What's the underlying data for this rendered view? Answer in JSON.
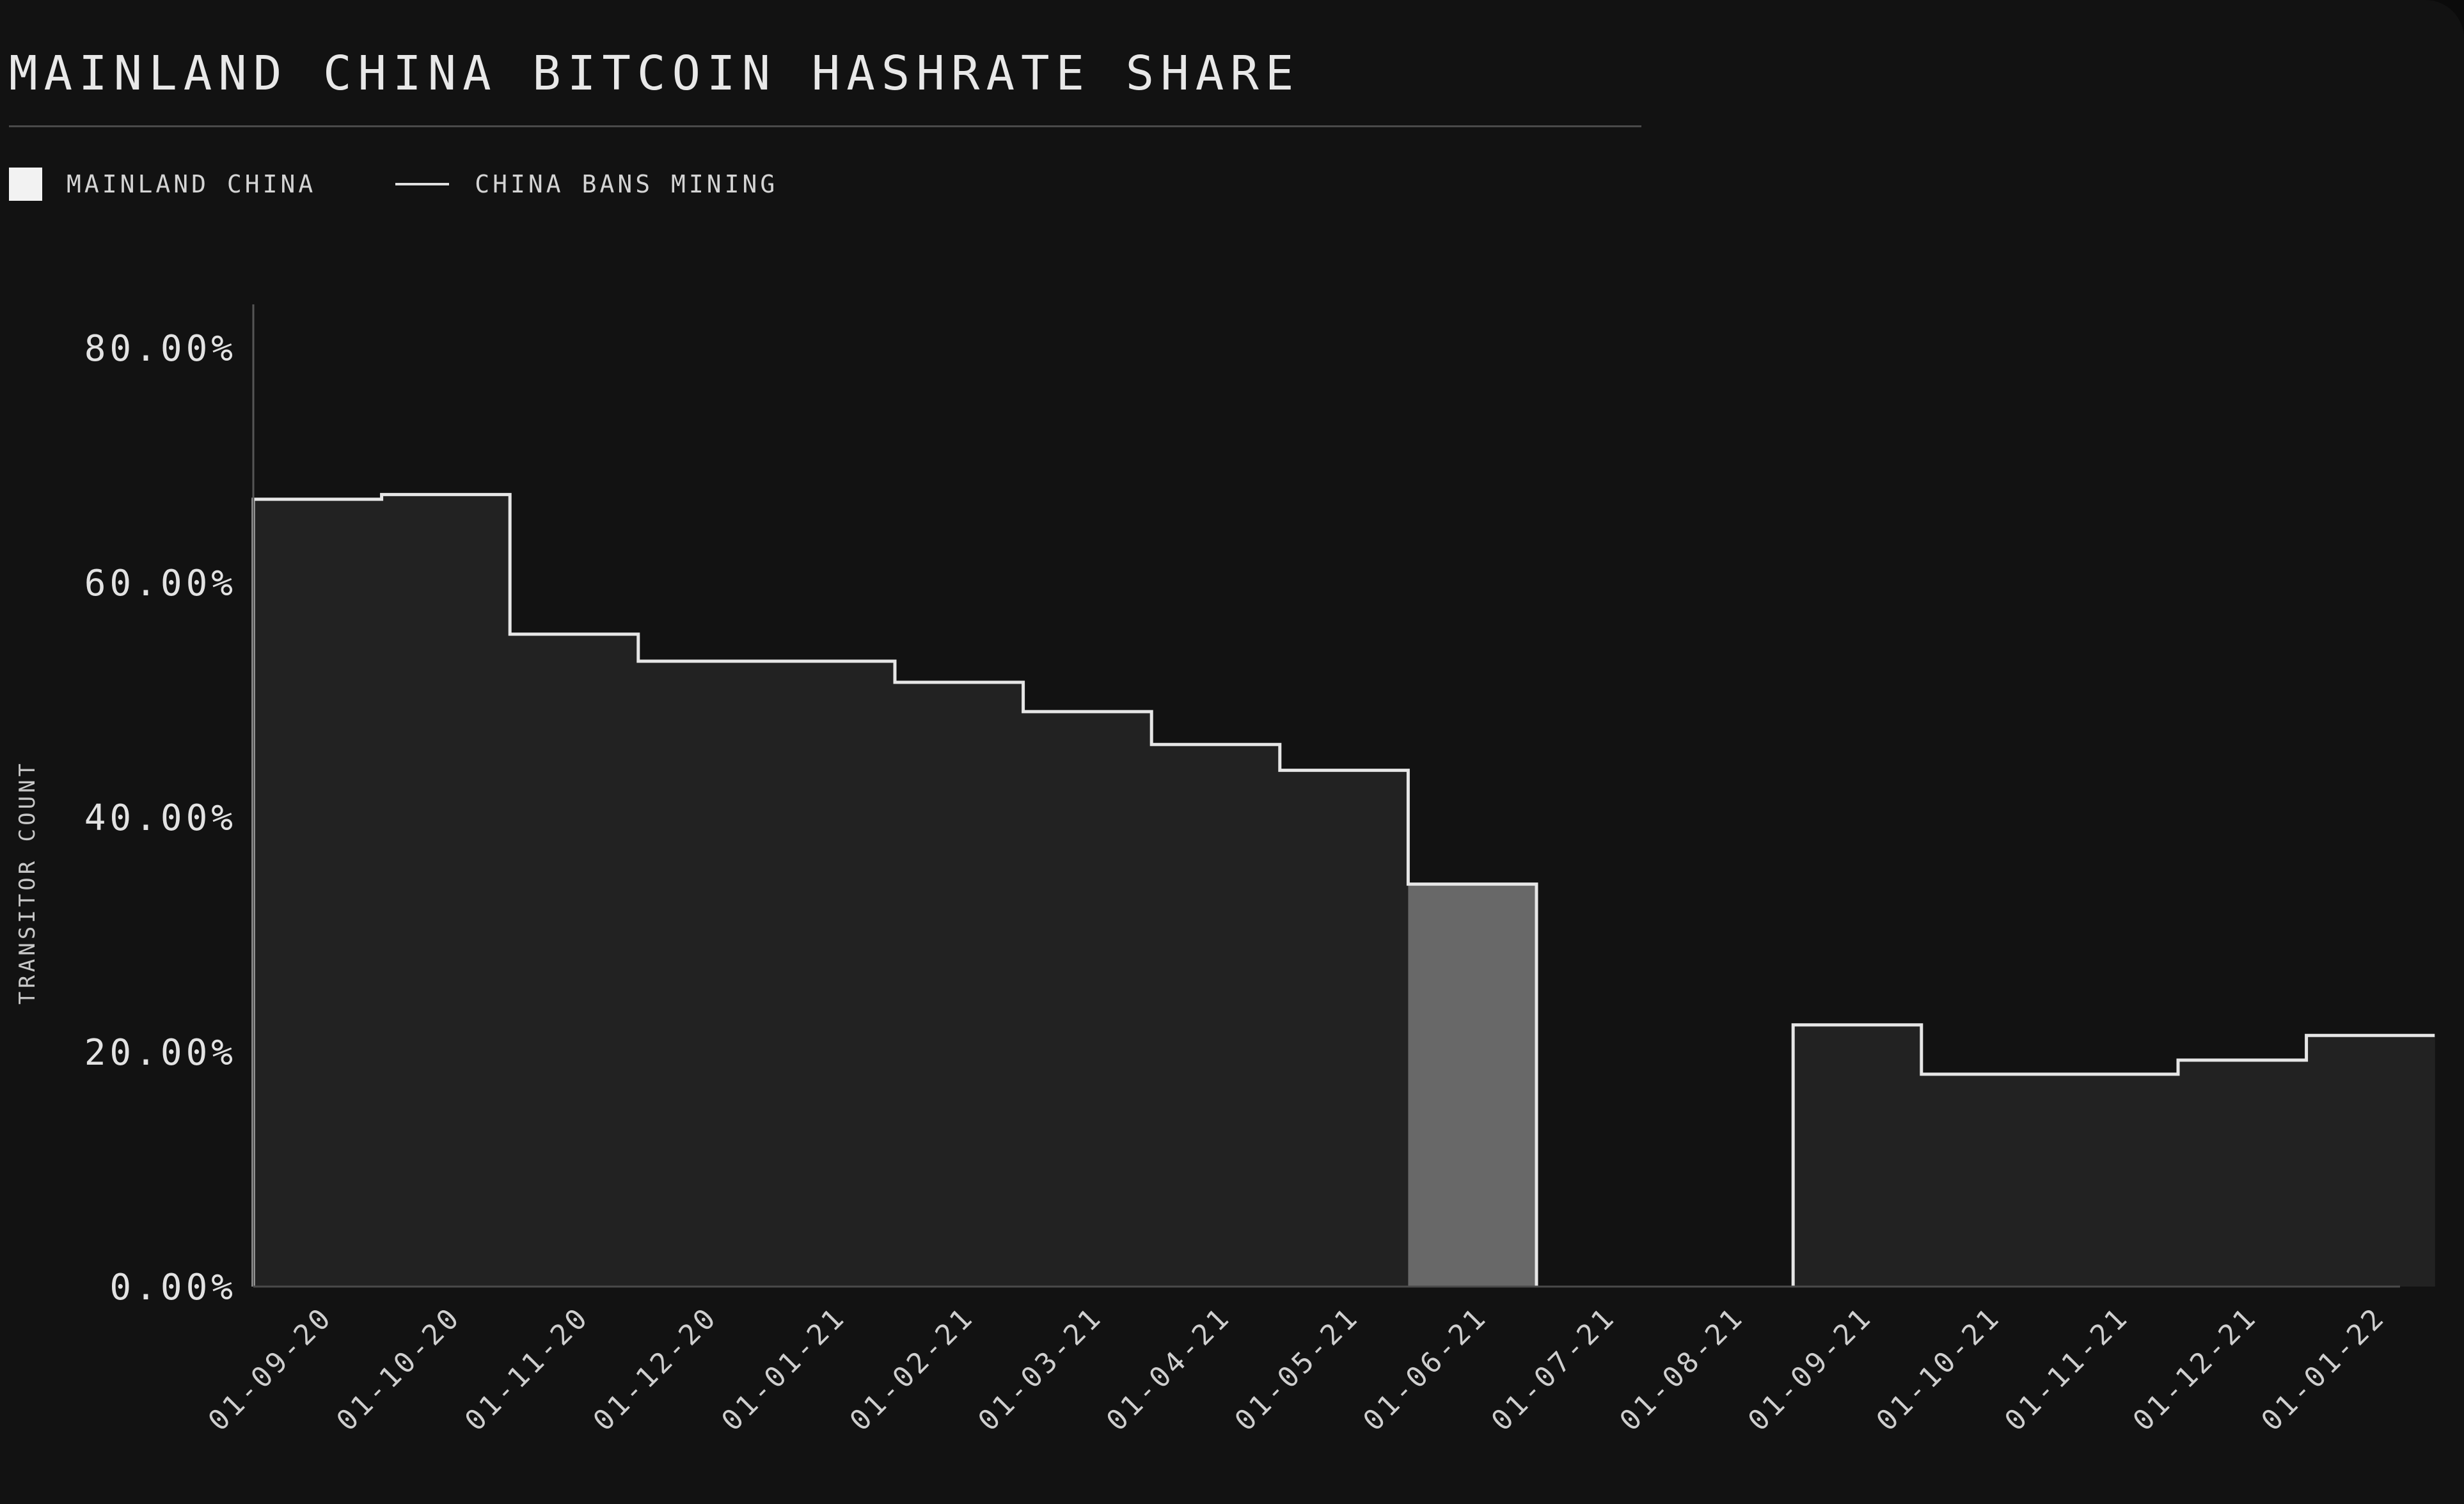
{
  "chart_data": {
    "type": "bar",
    "title": "MAINLAND CHINA BITCOIN HASHRATE SHARE",
    "ylabel": "TRANSITOR COUNT",
    "xlabel": "",
    "ylim": [
      0,
      80
    ],
    "yticks": [
      "0.00%",
      "20.00%",
      "40.00%",
      "60.00%",
      "80.00%"
    ],
    "categories": [
      "01-09-20",
      "01-10-20",
      "01-11-20",
      "01-12-20",
      "01-01-21",
      "01-02-21",
      "01-03-21",
      "01-04-21",
      "01-05-21",
      "01-06-21",
      "01-07-21",
      "01-08-21",
      "01-09-21",
      "01-10-21",
      "01-11-21",
      "01-12-21",
      "01-01-22"
    ],
    "legend": {
      "placement": "top-left",
      "entries": [
        "MAINLAND CHINA",
        "CHINA BANS MINING"
      ]
    },
    "series": [
      {
        "name": "MAINLAND CHINA",
        "color": "#222222",
        "values": [
          67.1,
          67.5,
          55.6,
          53.3,
          53.3,
          51.5,
          49.0,
          46.2,
          44.0,
          34.3,
          0,
          0,
          22.3,
          18.1,
          18.1,
          19.3,
          21.4
        ]
      }
    ],
    "highlight": {
      "name": "CHINA BANS MINING",
      "category": "01-06-21",
      "color": "#686868"
    },
    "grid": false
  }
}
